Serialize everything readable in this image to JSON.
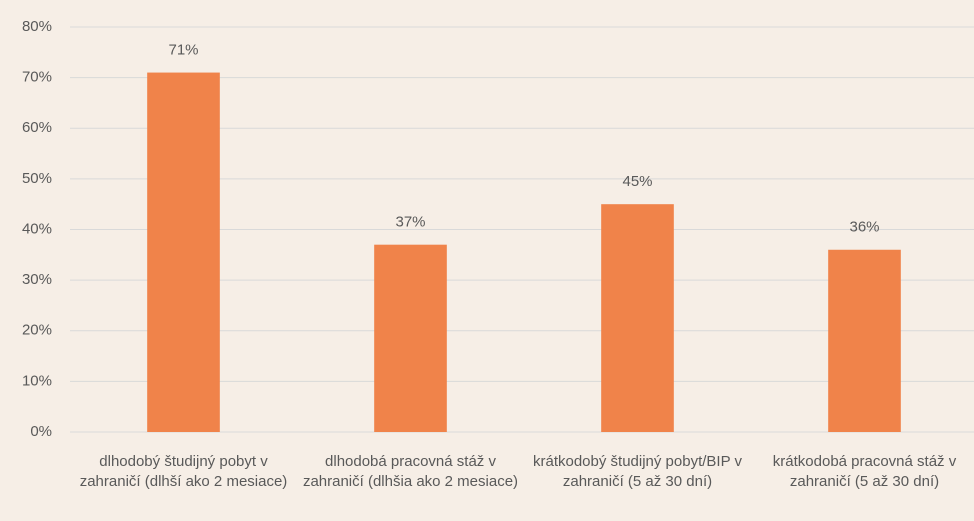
{
  "chart_data": {
    "type": "bar",
    "categories": [
      "dlhodobý študijný pobyt v zahraničí (dlhší ako 2 mesiace)",
      "dlhodobá pracovná stáž v zahraničí (dlhšia ako 2 mesiace)",
      "krátkodobý študijný pobyt/BIP v zahraničí (5 až 30 dní)",
      "krátkodobá pracovná stáž v zahraničí  (5 až 30 dní)"
    ],
    "values": [
      71,
      37,
      45,
      36
    ],
    "value_labels": [
      "71%",
      "37%",
      "45%",
      "36%"
    ],
    "color": "#f0834a",
    "ylim": [
      0,
      80
    ],
    "yticks": [
      {
        "value": 0,
        "label": "0%"
      },
      {
        "value": 10,
        "label": "10%"
      },
      {
        "value": 20,
        "label": "20%"
      },
      {
        "value": 30,
        "label": "30%"
      },
      {
        "value": 40,
        "label": "40%"
      },
      {
        "value": 50,
        "label": "50%"
      },
      {
        "value": 60,
        "label": "60%"
      },
      {
        "value": 70,
        "label": "70%"
      },
      {
        "value": 80,
        "label": "80%"
      }
    ],
    "grid": true
  }
}
